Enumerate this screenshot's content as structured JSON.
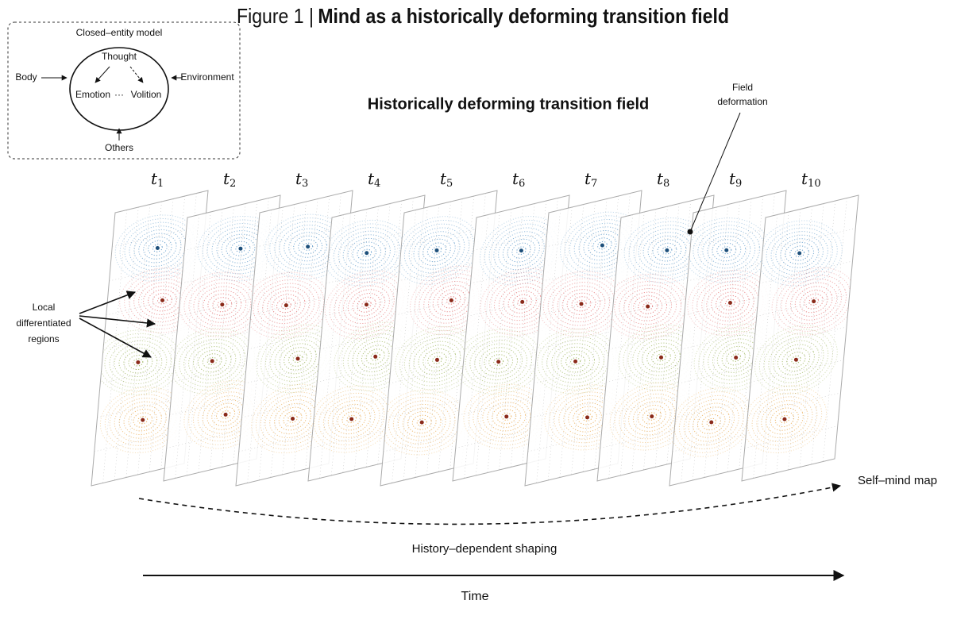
{
  "figure_title": {
    "label": "Figure 1 |",
    "title": "Mind as a historically deforming transition field"
  },
  "inset": {
    "title": "Closed–entity model",
    "center": "Thought",
    "left": "Emotion",
    "dots": "···",
    "right": "Volition",
    "inputs": {
      "left": "Body",
      "right": "Environment",
      "bottom": "Others"
    }
  },
  "main_title": "Historically deforming transition field",
  "annotations": {
    "field_deformation": [
      "Field",
      "deformation"
    ],
    "local_regions": [
      "Local",
      "differentiated",
      "regions"
    ],
    "self_mind_map": "Self–mind map",
    "history_shaping": "History–dependent shaping",
    "time": "Time"
  },
  "panels": [
    {
      "base": "t",
      "sub": "1"
    },
    {
      "base": "t",
      "sub": "2"
    },
    {
      "base": "t",
      "sub": "3"
    },
    {
      "base": "t",
      "sub": "4"
    },
    {
      "base": "t",
      "sub": "5"
    },
    {
      "base": "t",
      "sub": "6"
    },
    {
      "base": "t",
      "sub": "7"
    },
    {
      "base": "t",
      "sub": "8"
    },
    {
      "base": "t",
      "sub": "9"
    },
    {
      "base": "t",
      "sub": "10"
    }
  ]
}
